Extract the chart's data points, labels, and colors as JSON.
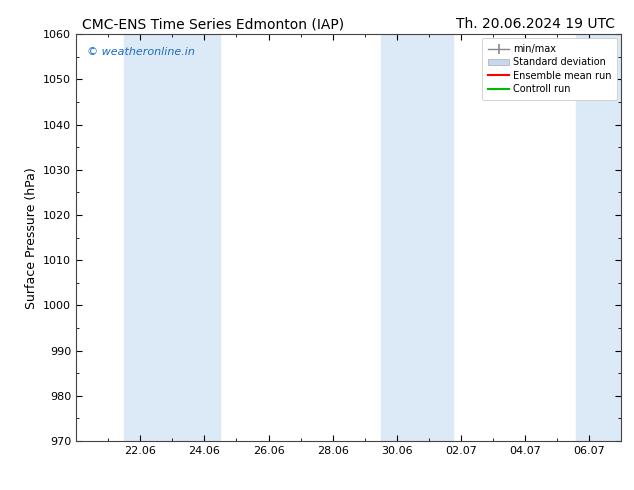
{
  "title_left": "CMC-ENS Time Series Edmonton (IAP)",
  "title_right": "Th. 20.06.2024 19 UTC",
  "ylabel": "Surface Pressure (hPa)",
  "ylim": [
    970,
    1060
  ],
  "yticks": [
    970,
    980,
    990,
    1000,
    1010,
    1020,
    1030,
    1040,
    1050,
    1060
  ],
  "x_labels": [
    "22.06",
    "24.06",
    "26.06",
    "28.06",
    "30.06",
    "02.07",
    "04.07",
    "06.07"
  ],
  "x_tick_positions": [
    2,
    4,
    6,
    8,
    10,
    12,
    14,
    16
  ],
  "xlim": [
    0,
    17
  ],
  "watermark": "© weatheronline.in",
  "watermark_color": "#1a6dc0",
  "background_color": "#ffffff",
  "plot_bg_color": "#ffffff",
  "shaded_regions": [
    {
      "x_start": 1.75,
      "x_end": 2.25
    },
    {
      "x_start": 3.75,
      "x_end": 4.25
    },
    {
      "x_start": 9.75,
      "x_end": 10.25
    },
    {
      "x_start": 10.25,
      "x_end": 10.75
    },
    {
      "x_start": 10.75,
      "x_end": 11.25
    },
    {
      "x_start": 11.25,
      "x_end": 11.75
    },
    {
      "x_start": 15.75,
      "x_end": 16.5
    }
  ],
  "shaded_color": "#dce9f7",
  "legend_entries": [
    {
      "label": "min/max",
      "style": "minmax",
      "color": "#999999"
    },
    {
      "label": "Standard deviation",
      "style": "patch",
      "color": "#c5d8ee"
    },
    {
      "label": "Ensemble mean run",
      "style": "line",
      "color": "#ff0000"
    },
    {
      "label": "Controll run",
      "style": "line",
      "color": "#00bb00"
    }
  ],
  "title_fontsize": 10,
  "ylabel_fontsize": 9,
  "tick_fontsize": 8,
  "legend_fontsize": 7,
  "watermark_fontsize": 8
}
